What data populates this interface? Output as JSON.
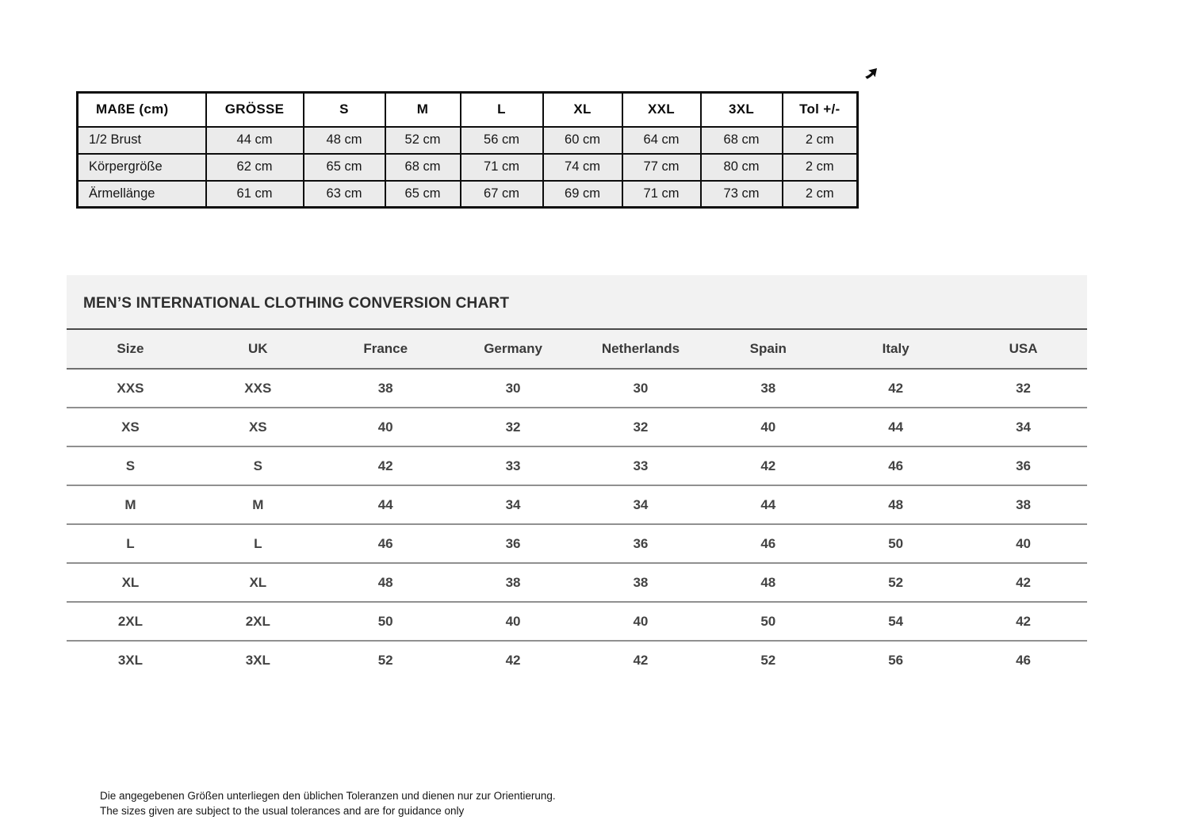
{
  "icons": {
    "top_right": "northeast-arrow-icon"
  },
  "colors": {
    "measure_row_bg": "#ebebeb",
    "measure_border": "#0d0d0d",
    "chart_band_bg": "#f2f2f2",
    "chart_line_dark": "#4a4a4a",
    "chart_line_light": "#909090"
  },
  "measure_table": {
    "headers": [
      "MAßE (cm)",
      "GRÖSSE",
      "S",
      "M",
      "L",
      "XL",
      "XXL",
      "3XL",
      "Tol +/-"
    ],
    "rows": [
      {
        "label": "1/2 Brust",
        "values": [
          "44 cm",
          "48 cm",
          "52 cm",
          "56 cm",
          "60 cm",
          "64 cm",
          "68 cm",
          "2 cm"
        ]
      },
      {
        "label": "Körpergröße",
        "values": [
          "62 cm",
          "65 cm",
          "68 cm",
          "71 cm",
          "74 cm",
          "77 cm",
          "80 cm",
          "2 cm"
        ]
      },
      {
        "label": "Ärmellänge",
        "values": [
          "61 cm",
          "63 cm",
          "65 cm",
          "67 cm",
          "69 cm",
          "71 cm",
          "73 cm",
          "2 cm"
        ]
      }
    ]
  },
  "conversion_chart": {
    "title": "MEN’S INTERNATIONAL CLOTHING CONVERSION CHART",
    "headers": [
      "Size",
      "UK",
      "France",
      "Germany",
      "Netherlands",
      "Spain",
      "Italy",
      "USA"
    ],
    "rows": [
      [
        "XXS",
        "XXS",
        "38",
        "30",
        "30",
        "38",
        "42",
        "32"
      ],
      [
        "XS",
        "XS",
        "40",
        "32",
        "32",
        "40",
        "44",
        "34"
      ],
      [
        "S",
        "S",
        "42",
        "33",
        "33",
        "42",
        "46",
        "36"
      ],
      [
        "M",
        "M",
        "44",
        "34",
        "34",
        "44",
        "48",
        "38"
      ],
      [
        "L",
        "L",
        "46",
        "36",
        "36",
        "46",
        "50",
        "40"
      ],
      [
        "XL",
        "XL",
        "48",
        "38",
        "38",
        "48",
        "52",
        "42"
      ],
      [
        "2XL",
        "2XL",
        "50",
        "40",
        "40",
        "50",
        "54",
        "42"
      ],
      [
        "3XL",
        "3XL",
        "52",
        "42",
        "42",
        "52",
        "56",
        "46"
      ]
    ]
  },
  "footer": {
    "line_de": "Die angegebenen Größen unterliegen den üblichen Toleranzen und dienen nur zur Orientierung.",
    "line_en": "The sizes given are subject to the usual tolerances and are for guidance only"
  }
}
